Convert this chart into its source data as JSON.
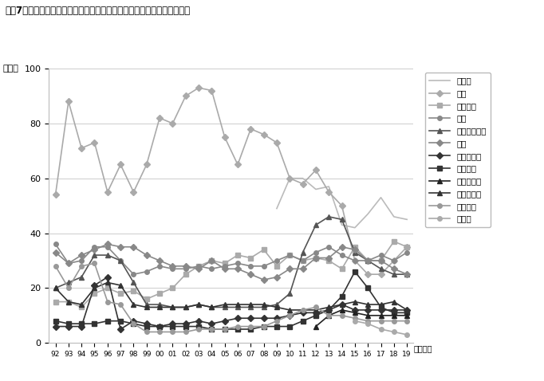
{
  "title": "図表7　中期的（今後３年程度）有望事業展開先国・地域　得票率の推移",
  "ylabel": "（％）",
  "xlabel_suffix": "（年度）",
  "years": [
    "92",
    "93",
    "94",
    "95",
    "96",
    "97",
    "98",
    "99",
    "00",
    "01",
    "02",
    "03",
    "04",
    "05",
    "06",
    "07",
    "08",
    "09",
    "10",
    "11",
    "12",
    "13",
    "14",
    "15",
    "16",
    "17",
    "18",
    "19"
  ],
  "ylim": [
    0,
    100
  ],
  "series": [
    {
      "name": "インド",
      "color": "#bbbbbb",
      "linewidth": 1.2,
      "marker": "None",
      "linestyle": "-",
      "data": [
        null,
        null,
        null,
        null,
        null,
        null,
        null,
        null,
        null,
        null,
        null,
        null,
        null,
        null,
        null,
        null,
        null,
        49,
        60,
        60,
        56,
        57,
        43,
        42,
        47,
        53,
        46,
        45
      ]
    },
    {
      "name": "中国",
      "color": "#aaaaaa",
      "linewidth": 1.2,
      "marker": "D",
      "markersize": 4,
      "linestyle": "-",
      "data": [
        54,
        88,
        71,
        73,
        55,
        65,
        55,
        65,
        82,
        80,
        90,
        93,
        92,
        75,
        65,
        78,
        76,
        73,
        60,
        58,
        63,
        55,
        50,
        30,
        25,
        25,
        30,
        35
      ]
    },
    {
      "name": "ベトナム",
      "color": "#aaaaaa",
      "linewidth": 1.2,
      "marker": "s",
      "markersize": 4,
      "linestyle": "-",
      "data": [
        15,
        15,
        13,
        18,
        20,
        18,
        19,
        16,
        18,
        20,
        25,
        28,
        30,
        29,
        32,
        31,
        34,
        28,
        32,
        30,
        31,
        30,
        27,
        35,
        30,
        30,
        37,
        35
      ]
    },
    {
      "name": "タイ",
      "color": "#888888",
      "linewidth": 1.2,
      "marker": "o",
      "markersize": 4,
      "linestyle": "-",
      "data": [
        36,
        29,
        30,
        35,
        35,
        30,
        25,
        26,
        28,
        27,
        27,
        28,
        27,
        28,
        29,
        28,
        28,
        30,
        32,
        30,
        33,
        35,
        32,
        30,
        30,
        32,
        30,
        33
      ]
    },
    {
      "name": "インドネシア",
      "color": "#555555",
      "linewidth": 1.2,
      "marker": "^",
      "markersize": 5,
      "linestyle": "-",
      "data": [
        20,
        22,
        24,
        32,
        32,
        30,
        22,
        14,
        14,
        13,
        13,
        14,
        13,
        13,
        13,
        13,
        13,
        14,
        18,
        33,
        43,
        46,
        45,
        33,
        30,
        27,
        25,
        25
      ]
    },
    {
      "name": "米国",
      "color": "#888888",
      "linewidth": 1.2,
      "marker": "D",
      "markersize": 4,
      "linestyle": "-",
      "data": [
        33,
        29,
        32,
        34,
        36,
        35,
        35,
        32,
        30,
        28,
        28,
        27,
        30,
        27,
        27,
        25,
        23,
        24,
        27,
        27,
        31,
        31,
        35,
        34,
        30,
        30,
        27,
        25
      ]
    },
    {
      "name": "フィリピン",
      "color": "#333333",
      "linewidth": 1.2,
      "marker": "D",
      "markersize": 4,
      "linestyle": "-",
      "data": [
        6,
        6,
        6,
        21,
        24,
        5,
        8,
        7,
        6,
        7,
        7,
        8,
        7,
        8,
        9,
        9,
        9,
        9,
        10,
        11,
        11,
        12,
        14,
        12,
        12,
        12,
        12,
        12
      ]
    },
    {
      "name": "メキシコ",
      "color": "#333333",
      "linewidth": 1.2,
      "marker": "s",
      "markersize": 4,
      "linestyle": "-",
      "data": [
        8,
        7,
        7,
        7,
        8,
        8,
        7,
        6,
        6,
        6,
        6,
        6,
        5,
        5,
        5,
        5,
        6,
        6,
        6,
        8,
        10,
        12,
        17,
        26,
        20,
        13,
        11,
        11
      ]
    },
    {
      "name": "ミャンマー",
      "color": "#222222",
      "linewidth": 1.2,
      "marker": "^",
      "markersize": 5,
      "linestyle": "-",
      "data": [
        null,
        null,
        null,
        null,
        null,
        null,
        null,
        null,
        null,
        null,
        null,
        null,
        null,
        null,
        null,
        null,
        null,
        null,
        null,
        null,
        6,
        10,
        12,
        11,
        10,
        10,
        10,
        10
      ]
    },
    {
      "name": "マレーシア",
      "color": "#333333",
      "linewidth": 1.2,
      "marker": "^",
      "markersize": 5,
      "linestyle": "-",
      "data": [
        20,
        15,
        14,
        20,
        22,
        21,
        14,
        13,
        13,
        13,
        13,
        14,
        13,
        14,
        14,
        14,
        14,
        13,
        12,
        12,
        12,
        13,
        14,
        15,
        14,
        14,
        15,
        12
      ]
    },
    {
      "name": "ブラジル",
      "color": "#999999",
      "linewidth": 1.2,
      "marker": "o",
      "markersize": 4,
      "linestyle": "-",
      "data": [
        28,
        20,
        28,
        29,
        15,
        14,
        7,
        4,
        4,
        4,
        4,
        5,
        5,
        5,
        6,
        6,
        6,
        8,
        10,
        12,
        13,
        10,
        10,
        9,
        8,
        8,
        8,
        8
      ]
    },
    {
      "name": "ロシア",
      "color": "#aaaaaa",
      "linewidth": 1.2,
      "marker": "o",
      "markersize": 4,
      "linestyle": "-",
      "data": [
        null,
        null,
        null,
        null,
        null,
        null,
        null,
        null,
        null,
        null,
        null,
        null,
        null,
        null,
        null,
        null,
        null,
        null,
        null,
        null,
        null,
        null,
        null,
        8,
        7,
        5,
        4,
        3
      ]
    }
  ]
}
